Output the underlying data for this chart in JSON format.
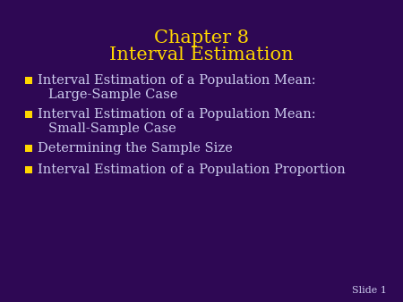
{
  "bg_color": "#2E0854",
  "title_line1": "Chapter 8",
  "title_line2": "Interval Estimation",
  "title_color": "#FFD700",
  "title_fontsize": 15,
  "text_color": "#CCCCEE",
  "bullet_items": [
    {
      "main": "Interval Estimation of a Population Mean:",
      "sub": "Large-Sample Case"
    },
    {
      "main": "Interval Estimation of a Population Mean:",
      "sub": "Small-Sample Case"
    },
    {
      "main": "Determining the Sample Size",
      "sub": null
    },
    {
      "main": "Interval Estimation of a Population Proportion",
      "sub": null
    }
  ],
  "bullet_fontsize": 10.5,
  "sub_fontsize": 10.5,
  "slide_label": "Slide 1",
  "slide_label_color": "#CCCCEE",
  "slide_label_fontsize": 8,
  "bullet_square_color": "#FFD700"
}
